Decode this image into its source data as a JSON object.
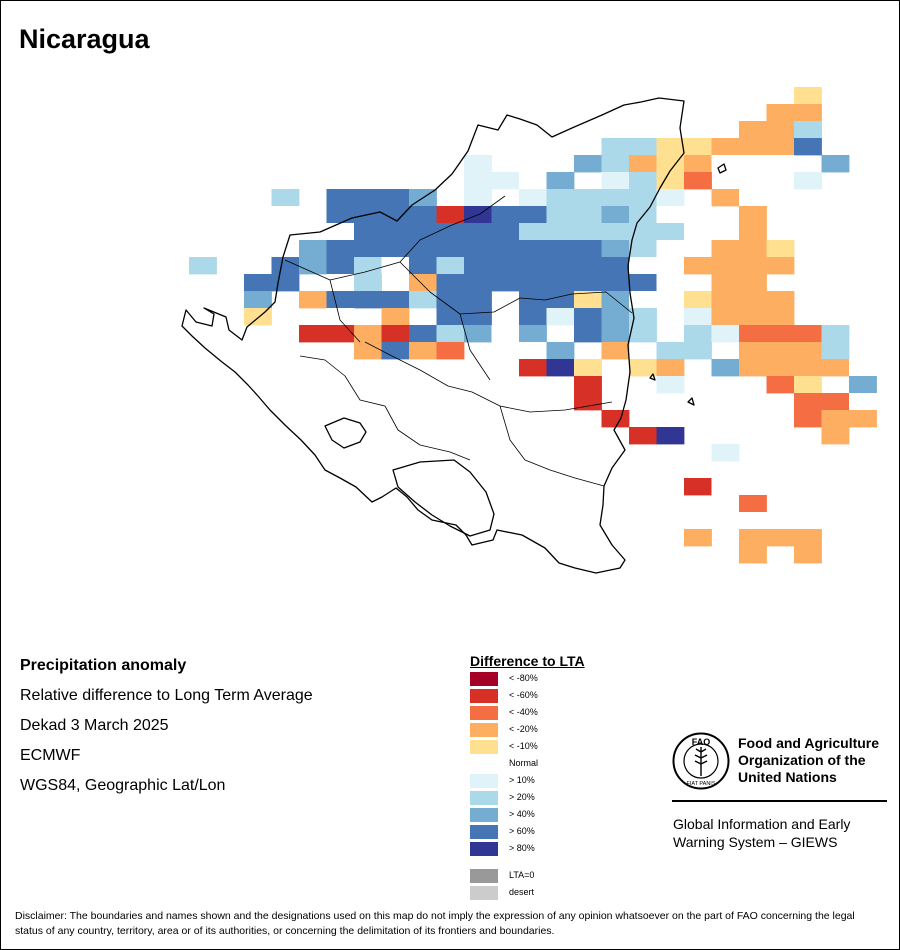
{
  "title": "Nicaragua",
  "info": {
    "heading": "Precipitation anomaly",
    "line1": "Relative difference to Long Term Average",
    "line2": "Dekad 3 March 2025",
    "line3": "ECMWF",
    "line4": "WGS84, Geographic Lat/Lon"
  },
  "legend": {
    "title": "Difference to LTA",
    "items": [
      {
        "label": "< -80%",
        "color": "#a50026"
      },
      {
        "label": "< -60%",
        "color": "#d73027"
      },
      {
        "label": "< -40%",
        "color": "#f46d43"
      },
      {
        "label": "< -20%",
        "color": "#fdae61"
      },
      {
        "label": "< -10%",
        "color": "#fee090"
      },
      {
        "label": "Normal",
        "color": "#ffffff"
      },
      {
        "label": "> 10%",
        "color": "#e0f3f8"
      },
      {
        "label": "> 20%",
        "color": "#abd9e9"
      },
      {
        "label": "> 40%",
        "color": "#74add1"
      },
      {
        "label": "> 60%",
        "color": "#4575b4"
      },
      {
        "label": "> 80%",
        "color": "#313695"
      },
      {
        "label": "LTA=0",
        "color": "#999999"
      },
      {
        "label": "desert",
        "color": "#cccccc"
      }
    ]
  },
  "grid": {
    "palette": {
      "1": "#d73027",
      "2": "#f46d43",
      "3": "#fdae61",
      "4": "#fee090",
      "5": "#ffffff",
      "6": "#e0f3f8",
      "7": "#abd9e9",
      "8": "#74add1",
      "9": "#4575b4",
      "10": "#313695"
    },
    "rows": [
      "......................4..",
      ".....................33..",
      "....................337..",
      "...............77443339..",
      "..........6.5587343555.8.",
      "..........6658.6742.5.6..",
      "...7.9998.6.677776.35....",
      "...5.99991099778755.3....",
      "...5559999997777775.3....",
      "...5899999999998755334...",
      "7.59897597999999553333...",
      "..99.57.3999999995.33....",
      "..8.3999799.99485.4333...",
      "..4..5.3.99.96987.6333...",
      "....113197858.987.762227.",
      "......3932.558.3.77.3337.",
      "............104.43.833335",
      "..............1..6...24.8",
      "..............1.......225",
      "...............1......233",
      "................10.....3.",
      "...................6.....",
      "......................5..",
      "..................15.....",
      "....................2....",
      "....................5....",
      "...............5..3.333..",
      "....................3.3.."
    ]
  },
  "fao": {
    "org": "Food and Agriculture\nOrganization of the\nUnited Nations",
    "giews": "Global Information and Early\nWarning System – GIEWS",
    "emblem_letters": "FAO",
    "emblem_motto": "FIAT PANIS"
  },
  "disclaimer": "Disclaimer: The boundaries and names shown and the designations used on this map do not imply the expression of any opinion whatsoever on the part of FAO concerning the legal status of any country, territory, area or of its authorities, or concerning the delimitation of its frontiers and boundaries."
}
